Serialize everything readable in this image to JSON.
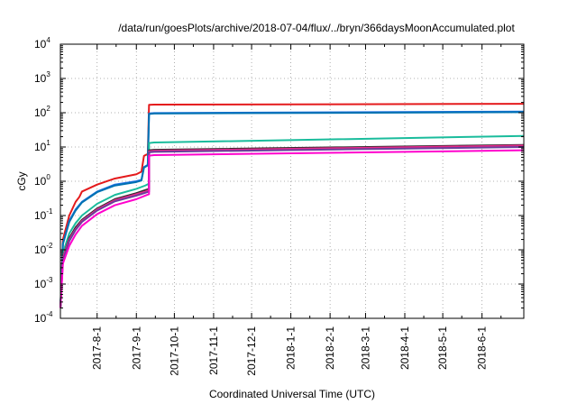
{
  "chart_data": {
    "type": "line",
    "title": "/data/run/goesPlots/archive/2018-07-04/flux/../bryn/366daysMoonAccumulated.plot",
    "xlabel": "Coordinated Universal Time (UTC)",
    "ylabel": "cGy",
    "y_scale": "log",
    "ylim": [
      0.0001,
      10000
    ],
    "xlim": [
      "2017-07-03",
      "2018-07-04"
    ],
    "grid": true,
    "legend": "none",
    "x_ticks": [
      "2017-8-1",
      "2017-9-1",
      "2017-10-1",
      "2017-11-1",
      "2017-12-1",
      "2018-1-1",
      "2018-2-1",
      "2018-3-1",
      "2018-4-1",
      "2018-5-1",
      "2018-6-1"
    ],
    "y_ticks": [
      {
        "base": "10",
        "exp": "-4"
      },
      {
        "base": "10",
        "exp": "-3"
      },
      {
        "base": "10",
        "exp": "-2"
      },
      {
        "base": "10",
        "exp": "-1"
      },
      {
        "base": "10",
        "exp": "0"
      },
      {
        "base": "10",
        "exp": "1"
      },
      {
        "base": "10",
        "exp": "2"
      },
      {
        "base": "10",
        "exp": "3"
      },
      {
        "base": "10",
        "exp": "4"
      }
    ],
    "series": [
      {
        "color": "#e41a1c",
        "points": [
          [
            "2017-07-03",
            0.0002
          ],
          [
            "2017-07-05",
            0.02
          ],
          [
            "2017-07-10",
            0.1
          ],
          [
            "2017-07-15",
            0.25
          ],
          [
            "2017-07-18",
            0.35
          ],
          [
            "2017-07-20",
            0.5
          ],
          [
            "2017-08-01",
            0.8
          ],
          [
            "2017-08-15",
            1.2
          ],
          [
            "2017-09-01",
            1.6
          ],
          [
            "2017-09-05",
            1.9
          ],
          [
            "2017-09-07",
            5.5
          ],
          [
            "2017-09-09",
            6
          ],
          [
            "2017-09-10",
            6
          ],
          [
            "2017-09-11",
            170
          ],
          [
            "2017-09-15",
            172
          ],
          [
            "2018-07-04",
            182
          ]
        ]
      },
      {
        "color": "#1f6fe5",
        "points": [
          [
            "2017-07-03",
            0.0002
          ],
          [
            "2017-07-05",
            0.015
          ],
          [
            "2017-07-10",
            0.07
          ],
          [
            "2017-07-15",
            0.15
          ],
          [
            "2017-07-20",
            0.25
          ],
          [
            "2017-08-01",
            0.5
          ],
          [
            "2017-08-15",
            0.8
          ],
          [
            "2017-09-01",
            1.0
          ],
          [
            "2017-09-05",
            1.1
          ],
          [
            "2017-09-07",
            2.6
          ],
          [
            "2017-09-10",
            3.0
          ],
          [
            "2017-09-11",
            95
          ],
          [
            "2017-09-15",
            98
          ],
          [
            "2018-07-04",
            108
          ]
        ]
      },
      {
        "color": "#0072b2",
        "points": [
          [
            "2017-07-03",
            0.0002
          ],
          [
            "2017-07-05",
            0.015
          ],
          [
            "2017-07-10",
            0.065
          ],
          [
            "2017-07-15",
            0.14
          ],
          [
            "2017-07-20",
            0.24
          ],
          [
            "2017-08-01",
            0.48
          ],
          [
            "2017-08-15",
            0.75
          ],
          [
            "2017-09-01",
            0.95
          ],
          [
            "2017-09-05",
            1.05
          ],
          [
            "2017-09-07",
            2.5
          ],
          [
            "2017-09-10",
            2.9
          ],
          [
            "2017-09-11",
            92
          ],
          [
            "2017-09-15",
            95
          ],
          [
            "2018-07-04",
            104
          ]
        ]
      },
      {
        "color": "#1abc9c",
        "points": [
          [
            "2017-07-03",
            0.0002
          ],
          [
            "2017-07-05",
            0.008
          ],
          [
            "2017-07-10",
            0.03
          ],
          [
            "2017-07-15",
            0.06
          ],
          [
            "2017-07-20",
            0.1
          ],
          [
            "2017-08-01",
            0.22
          ],
          [
            "2017-08-15",
            0.4
          ],
          [
            "2017-09-01",
            0.6
          ],
          [
            "2017-09-08",
            0.75
          ],
          [
            "2017-09-11",
            0.85
          ],
          [
            "2017-09-11",
            13
          ],
          [
            "2017-09-15",
            13.5
          ],
          [
            "2018-07-04",
            21
          ]
        ]
      },
      {
        "color": "#2b2b2b",
        "points": [
          [
            "2017-07-03",
            0.0002
          ],
          [
            "2017-07-05",
            0.006
          ],
          [
            "2017-07-10",
            0.022
          ],
          [
            "2017-07-15",
            0.045
          ],
          [
            "2017-07-20",
            0.075
          ],
          [
            "2017-08-01",
            0.16
          ],
          [
            "2017-08-15",
            0.3
          ],
          [
            "2017-09-01",
            0.45
          ],
          [
            "2017-09-08",
            0.55
          ],
          [
            "2017-09-11",
            0.6
          ],
          [
            "2017-09-11",
            8
          ],
          [
            "2017-09-15",
            8.3
          ],
          [
            "2018-07-04",
            11.5
          ]
        ]
      },
      {
        "color": "#e7298a",
        "points": [
          [
            "2017-07-03",
            0.0002
          ],
          [
            "2017-07-05",
            0.006
          ],
          [
            "2017-07-10",
            0.02
          ],
          [
            "2017-07-15",
            0.04
          ],
          [
            "2017-07-20",
            0.07
          ],
          [
            "2017-08-01",
            0.15
          ],
          [
            "2017-08-15",
            0.28
          ],
          [
            "2017-09-01",
            0.42
          ],
          [
            "2017-09-08",
            0.5
          ],
          [
            "2017-09-11",
            0.55
          ],
          [
            "2017-09-11",
            7.5
          ],
          [
            "2017-09-15",
            7.8
          ],
          [
            "2018-07-04",
            11.0
          ]
        ]
      },
      {
        "color": "#6a3d9a",
        "points": [
          [
            "2017-07-03",
            0.0002
          ],
          [
            "2017-07-05",
            0.005
          ],
          [
            "2017-07-10",
            0.018
          ],
          [
            "2017-07-15",
            0.038
          ],
          [
            "2017-07-20",
            0.065
          ],
          [
            "2017-08-01",
            0.14
          ],
          [
            "2017-08-15",
            0.26
          ],
          [
            "2017-09-01",
            0.38
          ],
          [
            "2017-09-08",
            0.46
          ],
          [
            "2017-09-11",
            0.5
          ],
          [
            "2017-09-11",
            7.0
          ],
          [
            "2017-09-15",
            7.2
          ],
          [
            "2018-07-04",
            10.0
          ]
        ]
      },
      {
        "color": "#ff00cc",
        "points": [
          [
            "2017-07-03",
            0.0002
          ],
          [
            "2017-07-05",
            0.004
          ],
          [
            "2017-07-10",
            0.013
          ],
          [
            "2017-07-15",
            0.028
          ],
          [
            "2017-07-20",
            0.05
          ],
          [
            "2017-08-01",
            0.11
          ],
          [
            "2017-08-15",
            0.2
          ],
          [
            "2017-09-01",
            0.3
          ],
          [
            "2017-09-08",
            0.38
          ],
          [
            "2017-09-11",
            0.42
          ],
          [
            "2017-09-11",
            5.6
          ],
          [
            "2017-09-15",
            5.8
          ],
          [
            "2018-07-04",
            8.0
          ]
        ]
      }
    ]
  }
}
